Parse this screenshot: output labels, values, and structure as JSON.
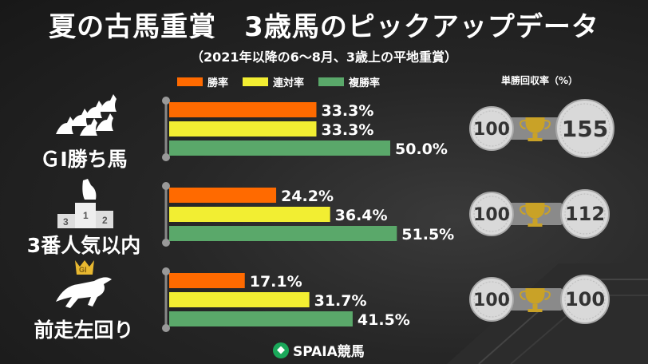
{
  "title": "夏の古馬重賞　3歳馬のピックアップデータ",
  "subtitle": "（2021年以降の6～8月、3歳上の平地重賞）",
  "roi_title": "単勝回収率（%）",
  "logo_text": "SPAIA競馬",
  "colors": {
    "win": "#ff6a00",
    "quinella": "#f2ee32",
    "show": "#5aa86a",
    "coin": "#d9d9d9",
    "trophy": "#c9a227"
  },
  "icons": [
    "horses-group-icon",
    "podium-horse-icon",
    "crowned-horse-icon",
    "trophy-icon",
    "coin-icon"
  ],
  "chart_data": {
    "type": "bar",
    "orientation": "horizontal",
    "categories": [
      "ＧⅠ勝ち馬",
      "3番人気以内",
      "前走左回り"
    ],
    "series": [
      {
        "name": "勝率",
        "values": [
          33.3,
          24.2,
          17.1
        ]
      },
      {
        "name": "連対率",
        "values": [
          33.3,
          36.4,
          31.7
        ]
      },
      {
        "name": "複勝率",
        "values": [
          50.0,
          51.5,
          41.5
        ]
      }
    ],
    "value_labels": [
      [
        "33.3%",
        "24.2%",
        "17.1%"
      ],
      [
        "33.3%",
        "36.4%",
        "31.7%"
      ],
      [
        "50.0%",
        "51.5%",
        "41.5%"
      ]
    ],
    "xlim": [
      0,
      100
    ],
    "legend": "top",
    "roi": {
      "base": [
        "100",
        "100",
        "100"
      ],
      "values": [
        "155",
        "112",
        "100"
      ]
    }
  }
}
